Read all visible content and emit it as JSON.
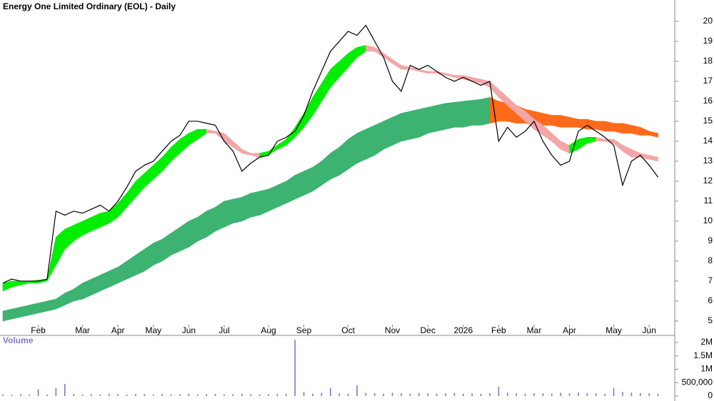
{
  "chart_data": [
    {
      "type": "line",
      "title": "Energy One Limited Ordinary (EOL) - Daily",
      "categories": [
        null,
        null,
        null,
        null,
        "Feb",
        null,
        null,
        null,
        null,
        "Mar",
        null,
        null,
        null,
        "Apr",
        null,
        null,
        null,
        "May",
        null,
        null,
        null,
        "Jun",
        null,
        null,
        null,
        "Jul",
        null,
        null,
        null,
        null,
        "Aug",
        null,
        null,
        null,
        "Sep",
        null,
        null,
        null,
        null,
        "Oct",
        null,
        null,
        null,
        null,
        "Nov",
        null,
        null,
        null,
        "Dec",
        null,
        null,
        null,
        "2026",
        null,
        null,
        null,
        "Feb",
        null,
        null,
        null,
        "Mar",
        null,
        null,
        null,
        "Apr",
        null,
        null,
        null,
        null,
        "May",
        null,
        null,
        null,
        "Jun",
        null
      ],
      "values": [
        6.9,
        7.1,
        7.0,
        7.0,
        7.0,
        7.1,
        10.5,
        10.3,
        10.5,
        10.4,
        10.6,
        10.8,
        10.5,
        11.0,
        11.7,
        12.5,
        12.8,
        13.0,
        13.5,
        14.0,
        14.3,
        15.0,
        15.0,
        14.9,
        14.8,
        14.0,
        13.5,
        12.5,
        12.9,
        13.2,
        13.3,
        14.0,
        14.2,
        14.5,
        15.3,
        16.5,
        17.5,
        18.5,
        19.0,
        19.5,
        19.3,
        19.8,
        19.0,
        18.2,
        17.0,
        16.5,
        17.8,
        17.6,
        17.8,
        17.5,
        17.2,
        17.0,
        17.2,
        17.0,
        16.8,
        17.0,
        14.0,
        14.7,
        14.2,
        14.5,
        15.0,
        14.0,
        13.3,
        12.8,
        13.0,
        14.5,
        14.8,
        14.5,
        14.2,
        13.8,
        11.8,
        13.0,
        13.3,
        12.8,
        12.2
      ],
      "color": "#000000",
      "bands": [
        {
          "lower": [
            6.5,
            6.7,
            6.8,
            6.9,
            6.9,
            7.0,
            7.8,
            8.6,
            9.0,
            9.3,
            9.5,
            9.7,
            9.9,
            10.2,
            10.7,
            11.2,
            11.7,
            12.1,
            12.5,
            13.0,
            13.4,
            13.8,
            14.1,
            14.4,
            14.4,
            14.0,
            13.7,
            13.4,
            13.3,
            13.2,
            13.3,
            13.6,
            13.8,
            14.2,
            14.7,
            15.3,
            16.0,
            16.7,
            17.2,
            17.7,
            18.2,
            18.5,
            18.5,
            18.2,
            17.9,
            17.6,
            17.6,
            17.5,
            17.4,
            17.4,
            17.3,
            17.2,
            17.1,
            17.0,
            16.9,
            16.7,
            16.2,
            15.8,
            15.4,
            15.0,
            14.6,
            14.3,
            14.0,
            13.6,
            13.4,
            13.6,
            13.9,
            14.0,
            14.0,
            13.9,
            13.5,
            13.2,
            13.2,
            13.1,
            13.0
          ],
          "upper": [
            6.9,
            7.0,
            7.0,
            7.0,
            7.05,
            7.1,
            9.2,
            9.6,
            9.8,
            10.0,
            10.2,
            10.4,
            10.5,
            10.9,
            11.4,
            12.0,
            12.4,
            12.8,
            13.2,
            13.7,
            14.1,
            14.4,
            14.6,
            14.6,
            14.5,
            14.4,
            14.0,
            13.6,
            13.4,
            13.4,
            13.5,
            13.8,
            14.1,
            14.7,
            15.4,
            16.2,
            16.9,
            17.6,
            18.0,
            18.4,
            18.7,
            18.8,
            18.7,
            18.4,
            18.1,
            17.8,
            17.7,
            17.6,
            17.5,
            17.5,
            17.4,
            17.3,
            17.3,
            17.2,
            17.1,
            17.0,
            16.6,
            16.2,
            15.8,
            15.5,
            15.1,
            14.8,
            14.4,
            14.0,
            13.8,
            14.1,
            14.2,
            14.2,
            14.1,
            14.1,
            13.8,
            13.6,
            13.4,
            13.3,
            13.2
          ],
          "up_color": "#00ee00",
          "down_color": "#f4a6a6"
        },
        {
          "lower": [
            5.0,
            5.1,
            5.2,
            5.3,
            5.4,
            5.5,
            5.6,
            5.8,
            6.0,
            6.1,
            6.3,
            6.5,
            6.7,
            6.9,
            7.1,
            7.3,
            7.5,
            7.8,
            8.0,
            8.3,
            8.5,
            8.7,
            9.0,
            9.2,
            9.5,
            9.7,
            9.9,
            10.0,
            10.2,
            10.3,
            10.5,
            10.7,
            10.9,
            11.1,
            11.3,
            11.5,
            11.8,
            12.1,
            12.3,
            12.6,
            12.9,
            13.1,
            13.3,
            13.6,
            13.8,
            14.0,
            14.1,
            14.2,
            14.4,
            14.5,
            14.6,
            14.7,
            14.7,
            14.8,
            14.8,
            14.9,
            15.0,
            15.0,
            14.9,
            14.9,
            14.8,
            14.8,
            14.8,
            14.7,
            14.7,
            14.7,
            14.6,
            14.6,
            14.5,
            14.5,
            14.4,
            14.4,
            14.3,
            14.3,
            14.2
          ],
          "upper": [
            5.5,
            5.6,
            5.7,
            5.8,
            5.9,
            6.0,
            6.1,
            6.4,
            6.6,
            6.9,
            7.1,
            7.3,
            7.5,
            7.7,
            8.0,
            8.3,
            8.6,
            8.9,
            9.1,
            9.4,
            9.7,
            10.0,
            10.2,
            10.5,
            10.7,
            11.0,
            11.1,
            11.2,
            11.4,
            11.5,
            11.6,
            11.8,
            12.0,
            12.3,
            12.5,
            12.7,
            13.0,
            13.4,
            13.7,
            14.1,
            14.4,
            14.6,
            14.8,
            15.0,
            15.2,
            15.4,
            15.5,
            15.6,
            15.7,
            15.8,
            15.9,
            15.95,
            16.0,
            16.05,
            16.1,
            16.2,
            16.0,
            15.9,
            15.8,
            15.6,
            15.5,
            15.4,
            15.3,
            15.3,
            15.2,
            15.1,
            15.1,
            15.0,
            15.0,
            14.9,
            14.9,
            14.8,
            14.7,
            14.5,
            14.4
          ],
          "up_color": "#3cb371",
          "down_color": "#ff6a1a"
        }
      ],
      "ylim": [
        4.82,
        21.07
      ],
      "yticks": [
        5,
        6,
        7,
        8,
        9,
        10,
        11,
        12,
        13,
        14,
        15,
        16,
        17,
        18,
        19,
        20
      ]
    },
    {
      "type": "bar",
      "title": "Volume",
      "color": "#7b7bc8",
      "values": [
        60000,
        50000,
        70000,
        60000,
        250000,
        60000,
        300000,
        450000,
        80000,
        60000,
        70000,
        60000,
        90000,
        70000,
        60000,
        80000,
        70000,
        60000,
        80000,
        60000,
        70000,
        90000,
        60000,
        70000,
        80000,
        60000,
        70000,
        90000,
        70000,
        60000,
        70000,
        80000,
        90000,
        2100000,
        150000,
        90000,
        120000,
        300000,
        100000,
        90000,
        400000,
        120000,
        100000,
        90000,
        120000,
        100000,
        90000,
        110000,
        100000,
        90000,
        100000,
        120000,
        90000,
        100000,
        90000,
        110000,
        350000,
        120000,
        100000,
        90000,
        110000,
        100000,
        90000,
        120000,
        100000,
        130000,
        110000,
        100000,
        90000,
        300000,
        150000,
        130000,
        110000,
        100000,
        90000
      ],
      "ylim": [
        -133000,
        2267000
      ],
      "yticks": [
        0,
        {
          "value": 500000,
          "label": "500,000"
        },
        {
          "value": 1000000,
          "label": "1M"
        },
        {
          "value": 1500000,
          "label": "1.5M"
        },
        {
          "value": 2000000,
          "label": "2M"
        }
      ]
    }
  ]
}
